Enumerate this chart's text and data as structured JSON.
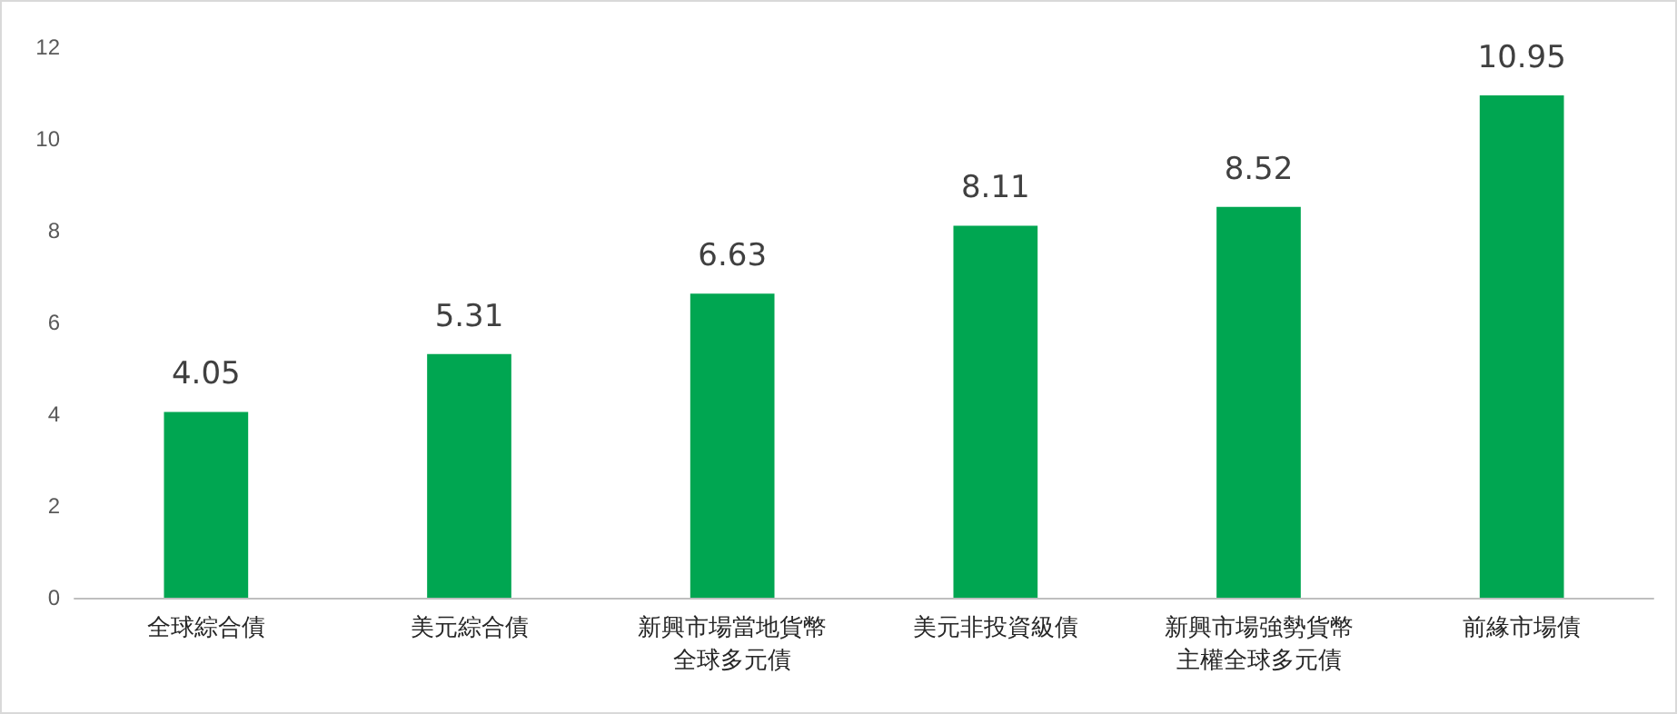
{
  "chart_data": {
    "type": "bar",
    "categories": [
      "全球綜合債",
      "美元綜合債",
      "新興市場當地貨幣全球多元債",
      "美元非投資級債",
      "新興市場強勢貨幣主權全球多元債",
      "前緣市場債"
    ],
    "values": [
      4.05,
      5.31,
      6.63,
      8.11,
      8.52,
      10.95
    ],
    "color": "#00a651",
    "ylim": [
      0,
      12
    ],
    "yticks": [
      0,
      2,
      4,
      6,
      8,
      10,
      12
    ],
    "grid": false,
    "data_labels": true
  }
}
